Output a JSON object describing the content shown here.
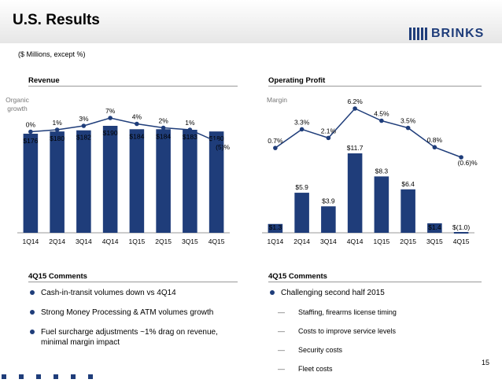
{
  "slide": {
    "title": "U.S. Results",
    "brand": "BRINKS",
    "subtitle": "($ Millions, except %)",
    "page_number": "15",
    "colors": {
      "bar": "#1f3d7a",
      "line": "#1f3d7a",
      "header_bg": "#e6e6e6"
    }
  },
  "revenue": {
    "heading": "Revenue",
    "line_label": "Organic\ngrowth",
    "line_label_lines": [
      "Organic",
      "growth"
    ]
  },
  "profit": {
    "heading": "Operating Profit",
    "line_label": "Margin"
  },
  "comments_left": {
    "heading": "4Q15 Comments",
    "bullets": [
      "Cash-in-transit volumes down vs 4Q14",
      "Strong Money Processing & ATM volumes growth",
      "Fuel surcharge adjustments ~1% drag on revenue, minimal margin impact"
    ]
  },
  "comments_right": {
    "heading": "4Q15 Comments",
    "bullet": "Challenging second half 2015",
    "sub_items": [
      "Staffing, firearms license timing",
      "Costs to improve service levels",
      "Security costs",
      "Fleet costs"
    ]
  },
  "chart_data": [
    {
      "type": "bar",
      "categories": [
        "1Q14",
        "2Q14",
        "3Q14",
        "4Q14",
        "1Q15",
        "2Q15",
        "3Q15",
        "4Q15"
      ],
      "values": [
        176,
        180,
        182,
        190,
        184,
        184,
        183,
        180
      ],
      "value_labels": [
        "$176",
        "$180",
        "$182",
        "$190",
        "$184",
        "$184",
        "$183",
        "$180"
      ],
      "title": "Revenue",
      "line_series": {
        "values": [
          0,
          1,
          3,
          7,
          4,
          2,
          1,
          -5
        ],
        "labels": [
          "0%",
          "1%",
          "3%",
          "7%",
          "4%",
          "2%",
          "1%",
          "(5)%"
        ]
      }
    },
    {
      "type": "bar",
      "categories": [
        "1Q14",
        "2Q14",
        "3Q14",
        "4Q14",
        "1Q15",
        "2Q15",
        "3Q15",
        "4Q15"
      ],
      "values": [
        1.3,
        5.9,
        3.9,
        11.7,
        8.3,
        6.4,
        1.4,
        -1.0
      ],
      "value_labels": [
        "$1.3",
        "$5.9",
        "$3.9",
        "$11.7",
        "$8.3",
        "$6.4",
        "$1.4",
        "$(1.0)"
      ],
      "title": "Operating Profit",
      "line_series": {
        "values": [
          0.7,
          3.3,
          2.1,
          6.2,
          4.5,
          3.5,
          0.8,
          -0.6
        ],
        "labels": [
          "0.7%",
          "3.3%",
          "2.1%",
          "6.2%",
          "4.5%",
          "3.5%",
          "0.8%",
          "(0.6)%"
        ]
      }
    }
  ]
}
